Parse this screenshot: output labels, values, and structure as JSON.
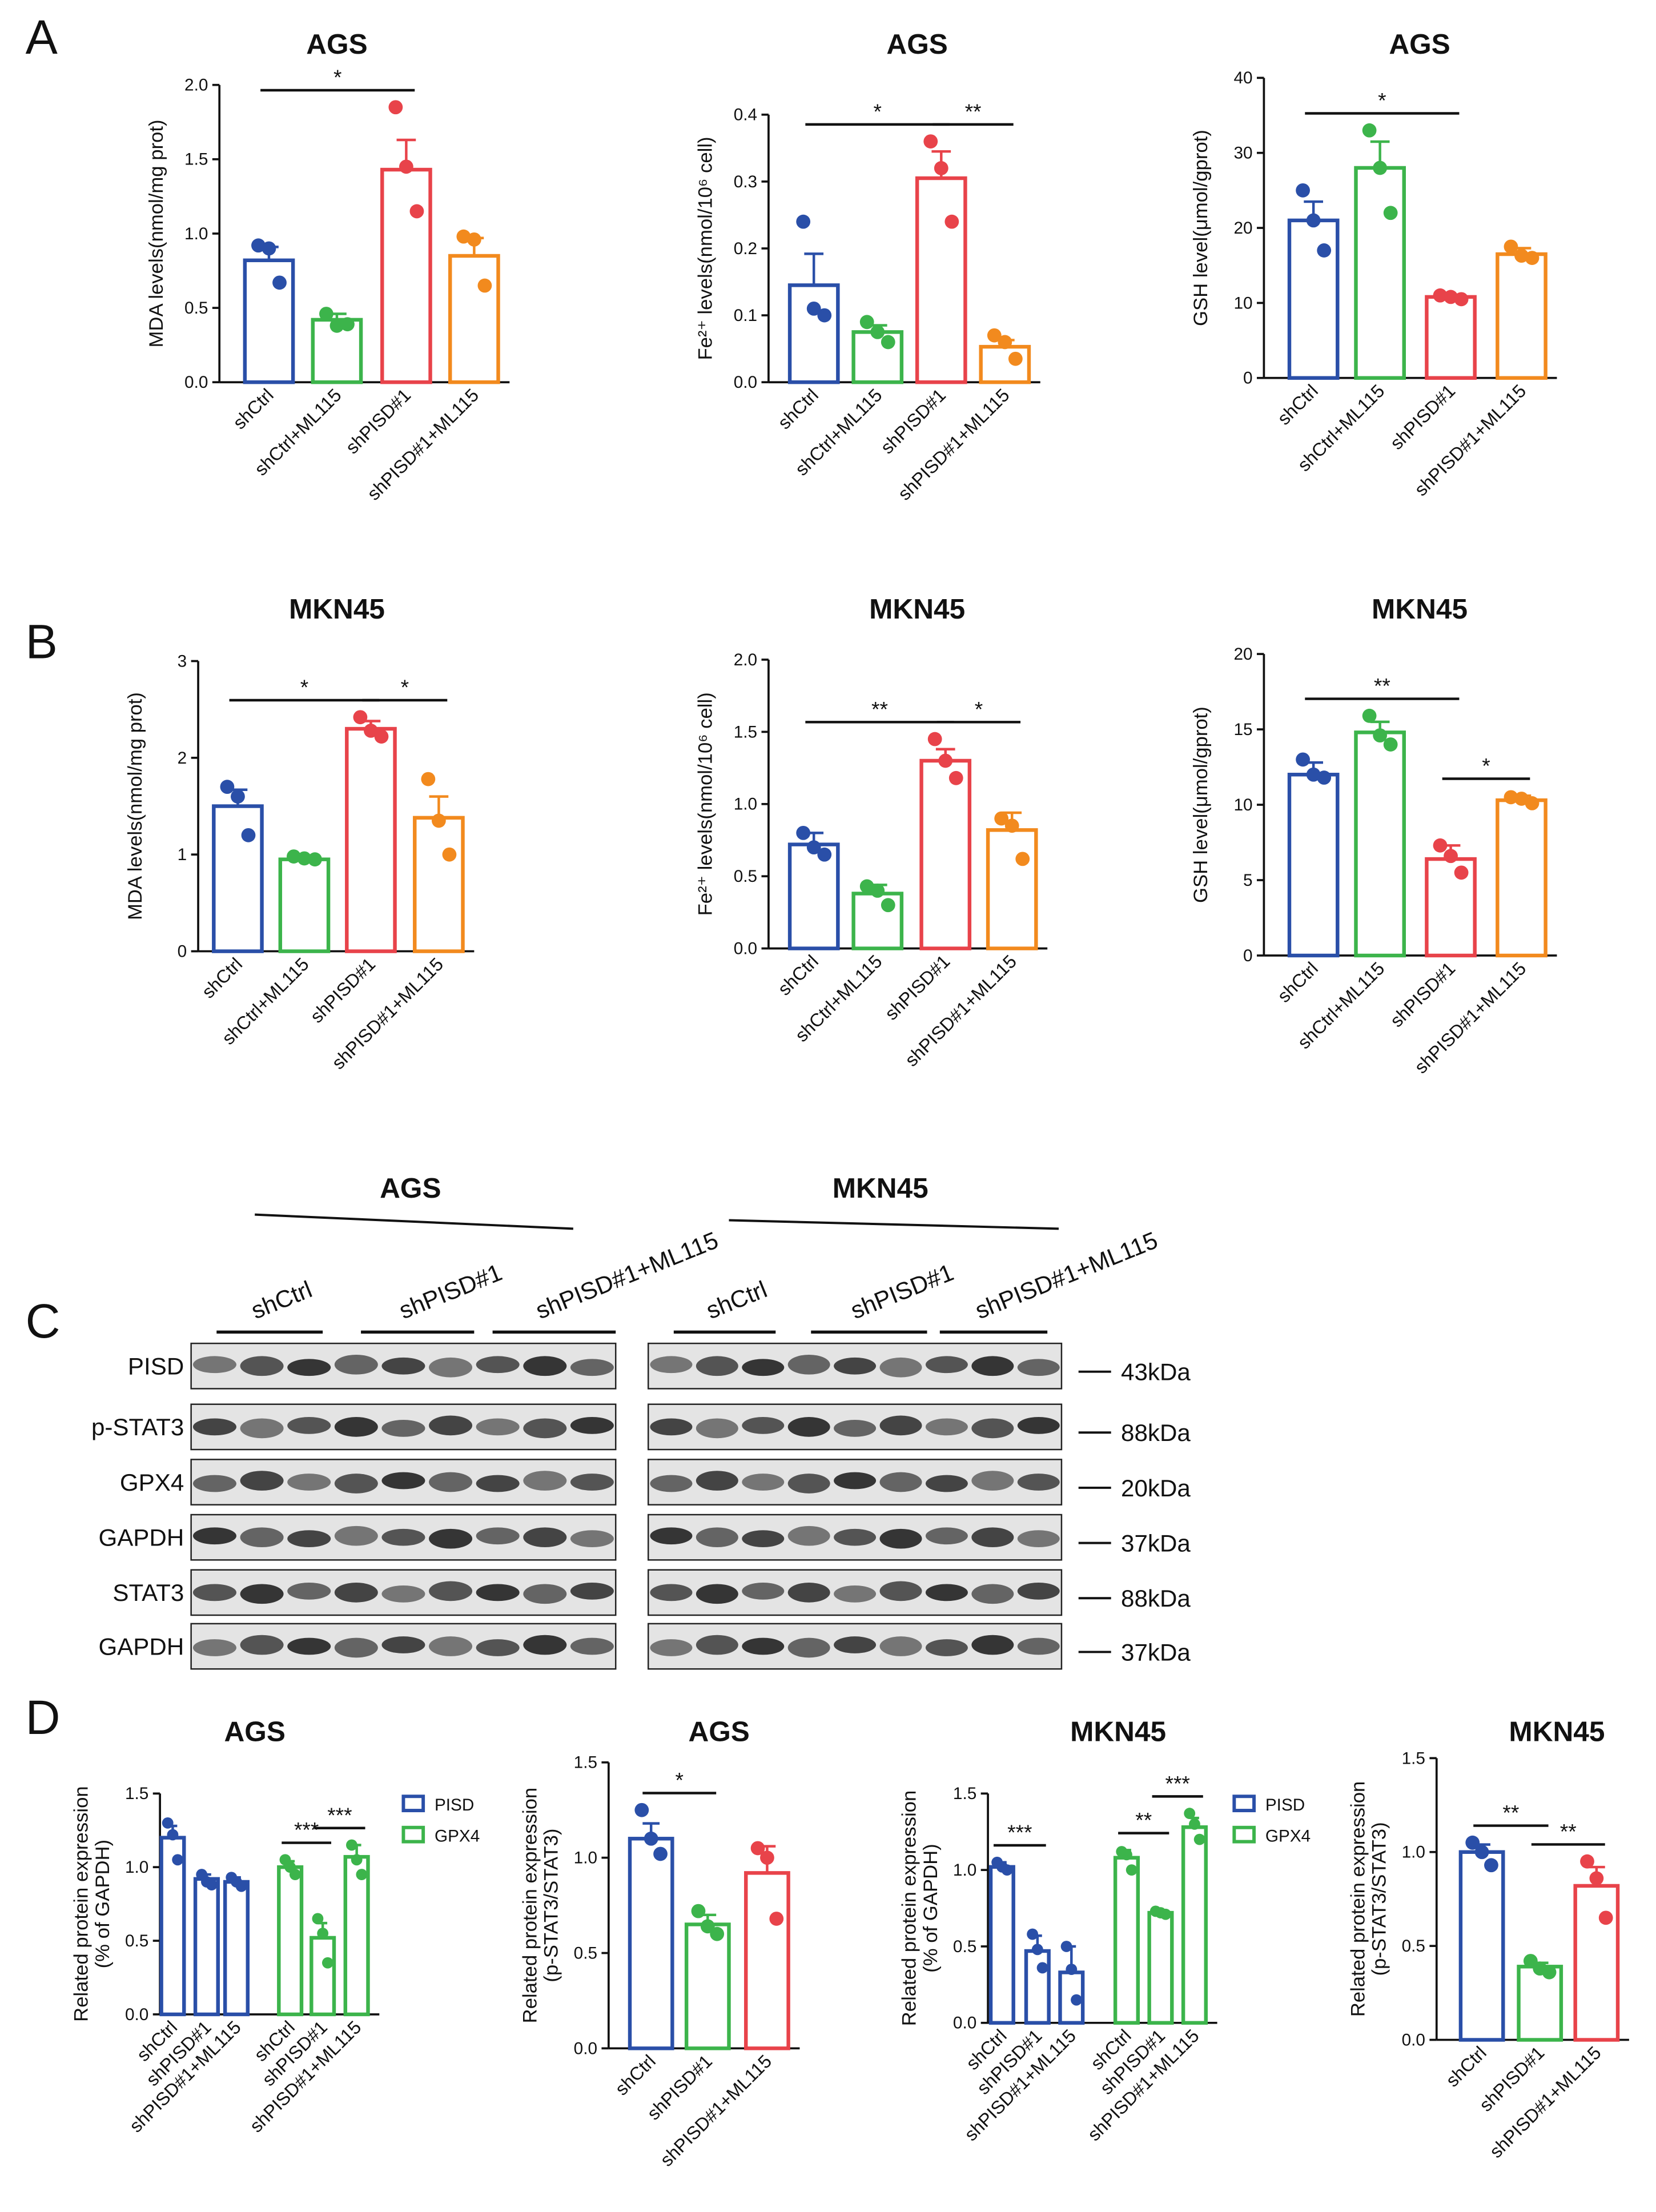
{
  "panel_labels": [
    "A",
    "B",
    "C",
    "D"
  ],
  "chart_data": [
    {
      "type": "bar",
      "title": "AGS",
      "ylabel": [
        "MDA levels(nmol/mg prot)"
      ],
      "categories": [
        "shCtrl",
        "shCtrl+ML115",
        "shPISD#1",
        "shPISD#1+ML115"
      ],
      "values": [
        0.82,
        0.42,
        1.43,
        0.85
      ],
      "errors": [
        0.09,
        0.04,
        0.2,
        0.12
      ],
      "points": [
        [
          0.92,
          0.9,
          0.67
        ],
        [
          0.46,
          0.38,
          0.39
        ],
        [
          1.85,
          1.45,
          1.15
        ],
        [
          0.98,
          0.96,
          0.65
        ]
      ],
      "colors": [
        "#2a4fa8",
        "#3cb44b",
        "#e8434a",
        "#f28a1e"
      ],
      "ylim": [
        0,
        2
      ],
      "yticks": [
        {
          "value": 0,
          "label": "0.0"
        },
        0.5,
        {
          "value": 1,
          "label": "1.0"
        },
        1.5,
        {
          "value": 2,
          "label": "2.0"
        }
      ],
      "annotations": [
        {
          "text": "*",
          "from": 0,
          "to": 2
        }
      ]
    },
    {
      "type": "bar",
      "title": "AGS",
      "ylabel": [
        "Fe²⁺ levels(nmol/10⁶ cell)"
      ],
      "categories": [
        "shCtrl",
        "shCtrl+ML115",
        "shPISD#1",
        "shPISD#1+ML115"
      ],
      "values": [
        0.145,
        0.075,
        0.305,
        0.053
      ],
      "errors": [
        0.047,
        0.01,
        0.04,
        0.01
      ],
      "points": [
        [
          0.24,
          0.11,
          0.1
        ],
        [
          0.09,
          0.075,
          0.06
        ],
        [
          0.36,
          0.32,
          0.24
        ],
        [
          0.07,
          0.06,
          0.035
        ]
      ],
      "colors": [
        "#2a4fa8",
        "#3cb44b",
        "#e8434a",
        "#f28a1e"
      ],
      "ylim": [
        0,
        0.4
      ],
      "yticks": [
        {
          "value": 0,
          "label": "0.0"
        },
        0.1,
        0.2,
        0.3,
        0.4
      ],
      "annotations": [
        {
          "text": "*",
          "from": 0,
          "to": 2
        },
        {
          "text": "**",
          "from": 2,
          "to": 3
        }
      ]
    },
    {
      "type": "bar",
      "title": "AGS",
      "ylabel": [
        "GSH level(μmol/gprot)"
      ],
      "categories": [
        "shCtrl",
        "shCtrl+ML115",
        "shPISD#1",
        "shPISD#1+ML115"
      ],
      "values": [
        21,
        28,
        10.8,
        16.5
      ],
      "errors": [
        2.5,
        3.5,
        0.3,
        0.8
      ],
      "points": [
        [
          25,
          21,
          17
        ],
        [
          33,
          28,
          22
        ],
        [
          11,
          10.8,
          10.5
        ],
        [
          17.5,
          16.3,
          16
        ]
      ],
      "colors": [
        "#2a4fa8",
        "#3cb44b",
        "#e8434a",
        "#f28a1e"
      ],
      "ylim": [
        0,
        40
      ],
      "yticks": [
        0,
        10,
        20,
        30,
        40
      ],
      "annotations": [
        {
          "text": "*",
          "from": 0,
          "to": 2
        }
      ]
    },
    {
      "type": "bar",
      "title": "MKN45",
      "ylabel": [
        "MDA levels(nmol/mg prot)"
      ],
      "categories": [
        "shCtrl",
        "shCtrl+ML115",
        "shPISD#1",
        "shPISD#1+ML115"
      ],
      "values": [
        1.5,
        0.95,
        2.3,
        1.38
      ],
      "errors": [
        0.17,
        0.02,
        0.08,
        0.22
      ],
      "points": [
        [
          1.7,
          1.6,
          1.2
        ],
        [
          0.98,
          0.96,
          0.95
        ],
        [
          2.42,
          2.28,
          2.22
        ],
        [
          1.78,
          1.35,
          1.0
        ]
      ],
      "colors": [
        "#2a4fa8",
        "#3cb44b",
        "#e8434a",
        "#f28a1e"
      ],
      "ylim": [
        0,
        3
      ],
      "yticks": [
        0,
        1,
        2,
        3
      ],
      "annotations": [
        {
          "text": "*",
          "from": 0,
          "to": 2
        },
        {
          "text": "*",
          "from": 2,
          "to": 3
        }
      ]
    },
    {
      "type": "bar",
      "title": "MKN45",
      "ylabel": [
        "Fe²⁺ levels(nmol/10⁶ cell)"
      ],
      "categories": [
        "shCtrl",
        "shCtrl+ML115",
        "shPISD#1",
        "shPISD#1+ML115"
      ],
      "values": [
        0.72,
        0.38,
        1.3,
        0.82
      ],
      "errors": [
        0.08,
        0.06,
        0.08,
        0.12
      ],
      "points": [
        [
          0.8,
          0.7,
          0.65
        ],
        [
          0.43,
          0.4,
          0.3
        ],
        [
          1.45,
          1.3,
          1.18
        ],
        [
          0.9,
          0.85,
          0.62
        ]
      ],
      "colors": [
        "#2a4fa8",
        "#3cb44b",
        "#e8434a",
        "#f28a1e"
      ],
      "ylim": [
        0,
        2
      ],
      "yticks": [
        {
          "value": 0,
          "label": "0.0"
        },
        0.5,
        {
          "value": 1,
          "label": "1.0"
        },
        1.5,
        {
          "value": 2,
          "label": "2.0"
        }
      ],
      "annotations": [
        {
          "text": "**",
          "from": 0,
          "to": 2
        },
        {
          "text": "*",
          "from": 2,
          "to": 3
        }
      ]
    },
    {
      "type": "bar",
      "title": "MKN45",
      "ylabel": [
        "GSH level(μmol/gprot)"
      ],
      "categories": [
        "shCtrl",
        "shCtrl+ML115",
        "shPISD#1",
        "shPISD#1+ML115"
      ],
      "values": [
        12,
        14.8,
        6.4,
        10.3
      ],
      "errors": [
        0.8,
        0.7,
        0.9,
        0.3
      ],
      "points": [
        [
          13,
          12,
          11.8
        ],
        [
          15.9,
          14.6,
          14
        ],
        [
          7.3,
          6.6,
          5.5
        ],
        [
          10.5,
          10.4,
          10.1
        ]
      ],
      "colors": [
        "#2a4fa8",
        "#3cb44b",
        "#e8434a",
        "#f28a1e"
      ],
      "ylim": [
        0,
        20
      ],
      "yticks": [
        0,
        5,
        10,
        15,
        20
      ],
      "annotations": [
        {
          "text": "**",
          "from": 0,
          "to": 2
        },
        {
          "text": "*",
          "from": 2,
          "to": 3
        }
      ]
    },
    {
      "type": "grouped_bar",
      "title": "AGS",
      "ylabel": [
        "Related protein expression",
        "(% of GAPDH)"
      ],
      "categories": [
        "shCtrl",
        "shPISD#1",
        "shPISD#1+ML115"
      ],
      "series": [
        {
          "name": "PISD",
          "color": "#2a4fa8",
          "values": [
            1.2,
            0.92,
            0.9
          ],
          "errors": [
            0.08,
            0.03,
            0.03
          ],
          "points": [
            [
              1.3,
              1.22,
              1.05
            ],
            [
              0.95,
              0.9,
              0.88
            ],
            [
              0.93,
              0.9,
              0.87
            ]
          ]
        },
        {
          "name": "GPX4",
          "color": "#3cb44b",
          "values": [
            1.0,
            0.52,
            1.07
          ],
          "errors": [
            0.04,
            0.1,
            0.08
          ],
          "points": [
            [
              1.05,
              1.0,
              0.95
            ],
            [
              0.65,
              0.55,
              0.35
            ],
            [
              1.15,
              1.05,
              0.95
            ]
          ]
        }
      ],
      "ylim": [
        0,
        1.5
      ],
      "yticks": [
        {
          "value": 0,
          "label": "0.0"
        },
        0.5,
        {
          "value": 1,
          "label": "1.0"
        },
        1.5
      ],
      "annotations": [
        {
          "text": "***",
          "series": 1,
          "from": 0,
          "to": 1
        },
        {
          "text": "***",
          "series": 1,
          "from": 1,
          "to": 2
        }
      ]
    },
    {
      "type": "bar",
      "title": "AGS",
      "ylabel": [
        "Related protein expression",
        "(p-STAT3/STAT3)"
      ],
      "categories": [
        "shCtrl",
        "shPISD#1",
        "shPISD#1+ML115"
      ],
      "values": [
        1.1,
        0.65,
        0.92
      ],
      "errors": [
        0.08,
        0.05,
        0.14
      ],
      "points": [
        [
          1.25,
          1.1,
          1.02
        ],
        [
          0.72,
          0.64,
          0.6
        ],
        [
          1.05,
          1.0,
          0.68
        ]
      ],
      "colors": [
        "#2a4fa8",
        "#3cb44b",
        "#e8434a"
      ],
      "ylim": [
        0,
        1.5
      ],
      "yticks": [
        {
          "value": 0,
          "label": "0.0"
        },
        0.5,
        {
          "value": 1,
          "label": "1.0"
        },
        1.5
      ],
      "annotations": [
        {
          "text": "*",
          "from": 0,
          "to": 1
        }
      ]
    },
    {
      "type": "grouped_bar",
      "title": "MKN45",
      "ylabel": [
        "Related protein expression",
        "(% of GAPDH)"
      ],
      "categories": [
        "shCtrl",
        "shPISD#1",
        "shPISD#1+ML115"
      ],
      "series": [
        {
          "name": "PISD",
          "color": "#2a4fa8",
          "values": [
            1.02,
            0.47,
            0.33
          ],
          "errors": [
            0.03,
            0.1,
            0.17
          ],
          "points": [
            [
              1.05,
              1.02,
              1.0
            ],
            [
              0.58,
              0.48,
              0.36
            ],
            [
              0.5,
              0.35,
              0.15
            ]
          ]
        },
        {
          "name": "GPX4",
          "color": "#3cb44b",
          "values": [
            1.08,
            0.72,
            1.28
          ],
          "errors": [
            0.05,
            0.01,
            0.06
          ],
          "points": [
            [
              1.12,
              1.1,
              1.0
            ],
            [
              0.73,
              0.72,
              0.71
            ],
            [
              1.37,
              1.3,
              1.2
            ]
          ]
        }
      ],
      "ylim": [
        0,
        1.5
      ],
      "yticks": [
        {
          "value": 0,
          "label": "0.0"
        },
        0.5,
        {
          "value": 1,
          "label": "1.0"
        },
        1.5
      ],
      "annotations": [
        {
          "text": "***",
          "series": 0,
          "from": 0,
          "to": 1
        },
        {
          "text": "**",
          "series": 1,
          "from": 0,
          "to": 1
        },
        {
          "text": "***",
          "series": 1,
          "from": 1,
          "to": 2
        }
      ]
    },
    {
      "type": "bar",
      "title": "MKN45",
      "ylabel": [
        "Related protein expression",
        "(p-STAT3/STAT3)"
      ],
      "categories": [
        "shCtrl",
        "shPISD#1",
        "shPISD#1+ML115"
      ],
      "values": [
        1.0,
        0.39,
        0.82
      ],
      "errors": [
        0.04,
        0.02,
        0.1
      ],
      "points": [
        [
          1.05,
          1.0,
          0.93
        ],
        [
          0.42,
          0.38,
          0.36
        ],
        [
          0.95,
          0.86,
          0.65
        ]
      ],
      "colors": [
        "#2a4fa8",
        "#3cb44b",
        "#e8434a"
      ],
      "ylim": [
        0,
        1.5
      ],
      "yticks": [
        {
          "value": 0,
          "label": "0.0"
        },
        0.5,
        {
          "value": 1,
          "label": "1.0"
        },
        1.5
      ],
      "annotations": [
        {
          "text": "**",
          "from": 0,
          "to": 1
        },
        {
          "text": "**",
          "from": 1,
          "to": 2
        }
      ]
    }
  ],
  "blot": {
    "cell_lines": [
      {
        "name": "AGS",
        "groups": [
          "shCtrl",
          "shPISD#1",
          "shPISD#1+ML115"
        ]
      },
      {
        "name": "MKN45",
        "groups": [
          "shCtrl",
          "shPISD#1",
          "shPISD#1+ML115"
        ]
      }
    ],
    "rows": [
      {
        "protein": "PISD",
        "size": "43kDa"
      },
      {
        "protein": "p-STAT3",
        "size": "88kDa"
      },
      {
        "protein": "GPX4",
        "size": "20kDa"
      },
      {
        "protein": "GAPDH",
        "size": "37kDa"
      },
      {
        "protein": "STAT3",
        "size": "88kDa"
      },
      {
        "protein": "GAPDH",
        "size": "37kDa"
      }
    ]
  }
}
